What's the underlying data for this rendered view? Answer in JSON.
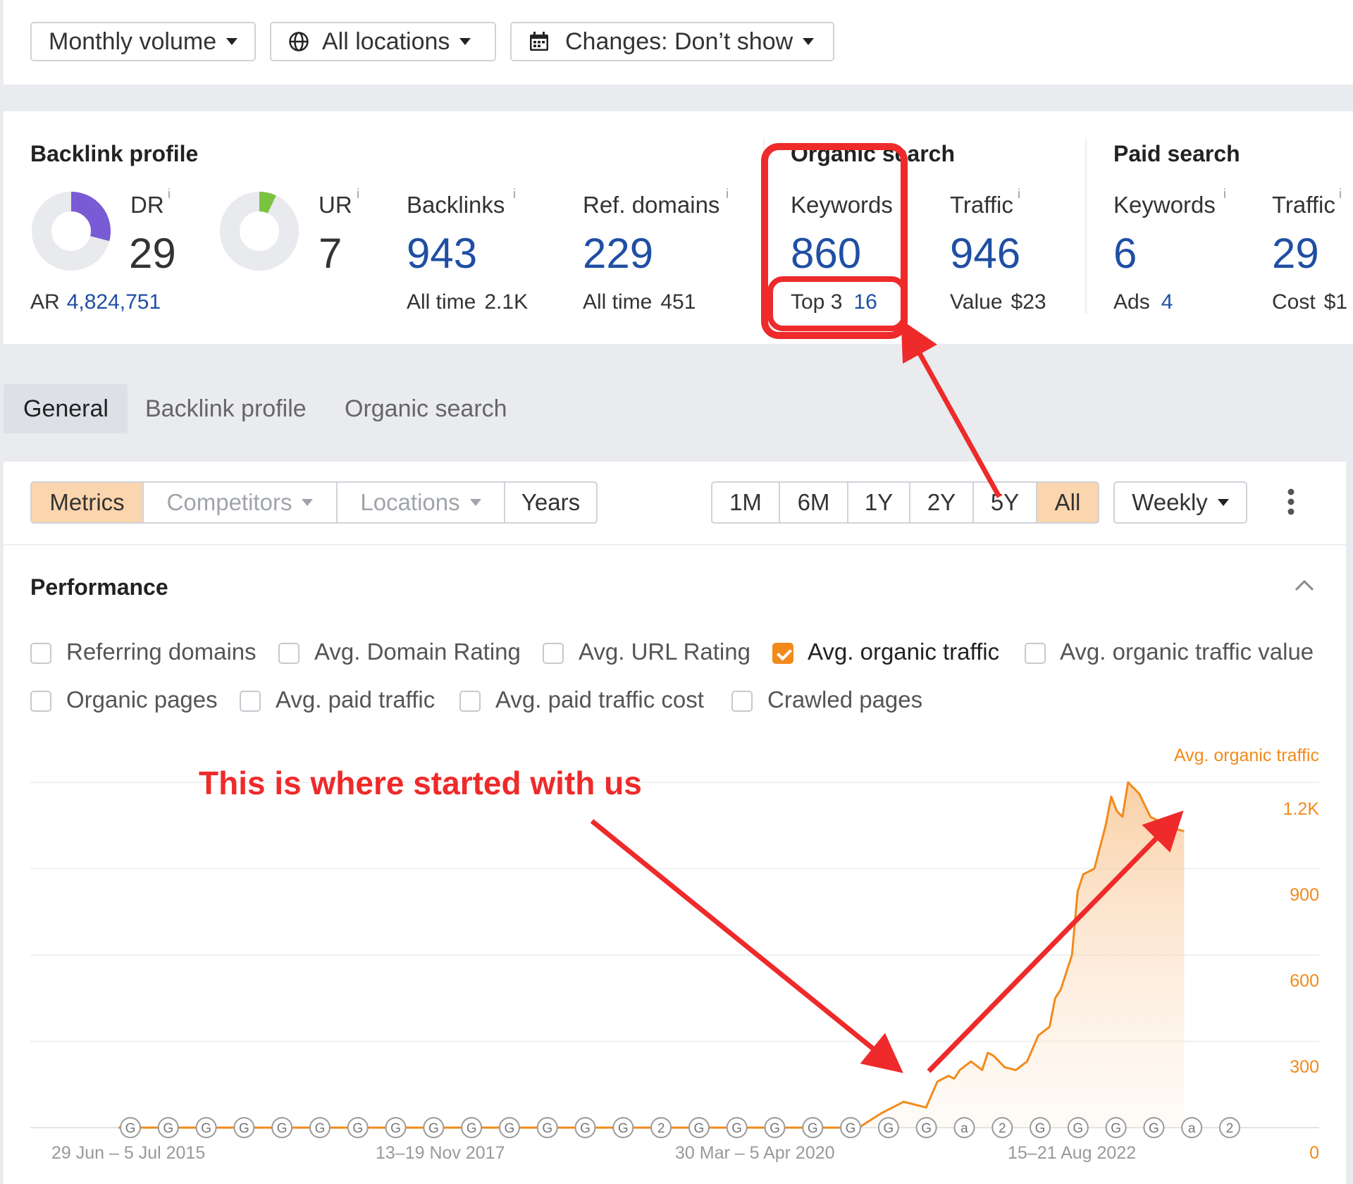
{
  "filters": {
    "volume": "Monthly volume",
    "locations": "All locations",
    "changes": "Changes: Don’t show"
  },
  "backlink_profile": {
    "title": "Backlink profile",
    "dr": {
      "label": "DR",
      "value": "29",
      "fraction": 0.29,
      "color": "#7a5bd6"
    },
    "ur": {
      "label": "UR",
      "value": "7",
      "fraction": 0.07,
      "color": "#7cc242"
    },
    "ar": {
      "label": "AR",
      "value": "4,824,751"
    },
    "backlinks": {
      "label": "Backlinks",
      "value": "943",
      "sub_label": "All time",
      "sub_value": "2.1K"
    },
    "ref_domains": {
      "label": "Ref. domains",
      "value": "229",
      "sub_label": "All time",
      "sub_value": "451"
    }
  },
  "organic_search": {
    "title": "Organic search",
    "keywords": {
      "label": "Keywords",
      "value": "860",
      "sub_label": "Top 3",
      "sub_value": "16"
    },
    "traffic": {
      "label": "Traffic",
      "value": "946",
      "sub_label": "Value",
      "sub_value": "$23"
    }
  },
  "paid_search": {
    "title": "Paid search",
    "keywords": {
      "label": "Keywords",
      "value": "6",
      "sub_label": "Ads",
      "sub_value": "4"
    },
    "traffic": {
      "label": "Traffic",
      "value": "29",
      "sub_label": "Cost",
      "sub_value": "$1"
    }
  },
  "info_mark": "i",
  "tabs": [
    "General",
    "Backlink profile",
    "Organic search"
  ],
  "controls": {
    "segments": [
      "Metrics",
      "Competitors",
      "Locations",
      "Years"
    ],
    "ranges": [
      "1M",
      "6M",
      "1Y",
      "2Y",
      "5Y",
      "All"
    ],
    "active_range": "All",
    "interval": "Weekly"
  },
  "performance": {
    "title": "Performance",
    "checkboxes": [
      {
        "label": "Referring domains",
        "checked": false
      },
      {
        "label": "Avg. Domain Rating",
        "checked": false
      },
      {
        "label": "Avg. URL Rating",
        "checked": false
      },
      {
        "label": "Avg. organic traffic",
        "checked": true
      },
      {
        "label": "Avg. organic traffic value",
        "checked": false
      },
      {
        "label": "Organic pages",
        "checked": false
      },
      {
        "label": "Avg. paid traffic",
        "checked": false
      },
      {
        "label": "Avg. paid traffic cost",
        "checked": false
      },
      {
        "label": "Crawled pages",
        "checked": false
      }
    ]
  },
  "chart_data": {
    "type": "area",
    "series": [
      {
        "name": "Avg. organic traffic",
        "color": "#f28a1b",
        "x": [
          0,
          10,
          20,
          30,
          40,
          50,
          60,
          66,
          68,
          70,
          72,
          73,
          74,
          74.5,
          75,
          76,
          77,
          77.5,
          78,
          79,
          80,
          81,
          82,
          83,
          83.5,
          84,
          85,
          85.5,
          86,
          87,
          88,
          88.5,
          89,
          89.5,
          90,
          91,
          92,
          93,
          94,
          95
        ],
        "values": [
          0,
          0,
          0,
          0,
          0,
          0,
          0,
          0,
          50,
          90,
          70,
          160,
          180,
          170,
          200,
          230,
          200,
          260,
          250,
          210,
          200,
          230,
          320,
          350,
          450,
          480,
          600,
          820,
          880,
          900,
          1050,
          1150,
          1100,
          1080,
          1200,
          1160,
          1080,
          1060,
          1040,
          1030
        ]
      }
    ],
    "x_ticks": [
      "29 Jun – 5 Jul 2015",
      "13–19 Nov 2017",
      "30 Mar – 5 Apr 2020",
      "15–21 Aug 2022"
    ],
    "y_ticks": [
      "0",
      "300",
      "600",
      "900",
      "1.2K"
    ],
    "ylim": [
      0,
      1200
    ],
    "legend": "Avg. organic traffic",
    "grid": true,
    "annotations": [
      "G",
      "G",
      "G",
      "G",
      "G",
      "G",
      "G",
      "G",
      "G",
      "G",
      "G",
      "G",
      "G",
      "G",
      "2",
      "G",
      "G",
      "G",
      "G",
      "G",
      "G",
      "G",
      "a",
      "2",
      "G",
      "G",
      "G",
      "G",
      "a",
      "2"
    ]
  },
  "annotation": {
    "text": "This is where started with us"
  }
}
